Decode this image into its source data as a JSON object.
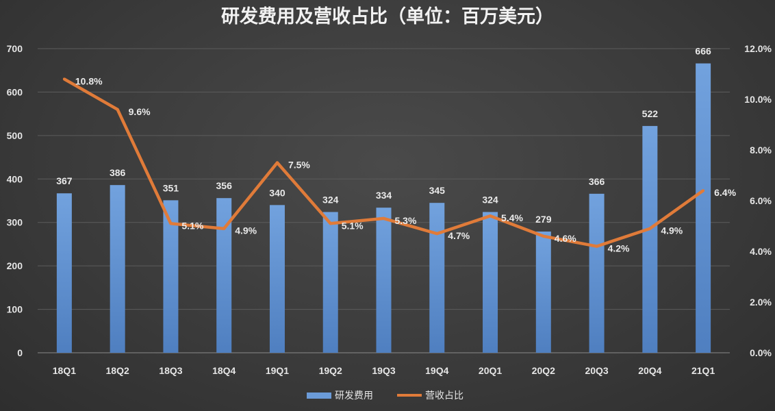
{
  "chart_data": {
    "type": "bar+line",
    "title": "研发费用及营收占比（单位：百万美元）",
    "categories": [
      "18Q1",
      "18Q2",
      "18Q3",
      "18Q4",
      "19Q1",
      "19Q2",
      "19Q3",
      "19Q4",
      "20Q1",
      "20Q2",
      "20Q3",
      "20Q4",
      "21Q1"
    ],
    "series": [
      {
        "name": "研发费用",
        "type": "bar",
        "axis": "left",
        "color": "#6b9bd8",
        "values": [
          367,
          386,
          351,
          356,
          340,
          324,
          334,
          345,
          324,
          279,
          366,
          522,
          666
        ]
      },
      {
        "name": "营收占比",
        "type": "line",
        "axis": "right",
        "color": "#e07b39",
        "values": [
          10.8,
          9.6,
          5.1,
          4.9,
          7.5,
          5.1,
          5.3,
          4.7,
          5.4,
          4.6,
          4.2,
          4.9,
          6.4
        ]
      }
    ],
    "y_left": {
      "range": [
        0,
        700
      ],
      "ticks": [
        "0",
        "100",
        "200",
        "300",
        "400",
        "500",
        "600",
        "700"
      ]
    },
    "y_right": {
      "range": [
        0,
        12
      ],
      "ticks": [
        "0.0%",
        "2.0%",
        "4.0%",
        "6.0%",
        "8.0%",
        "10.0%",
        "12.0%"
      ]
    },
    "grid": true,
    "legend": "bottom"
  }
}
